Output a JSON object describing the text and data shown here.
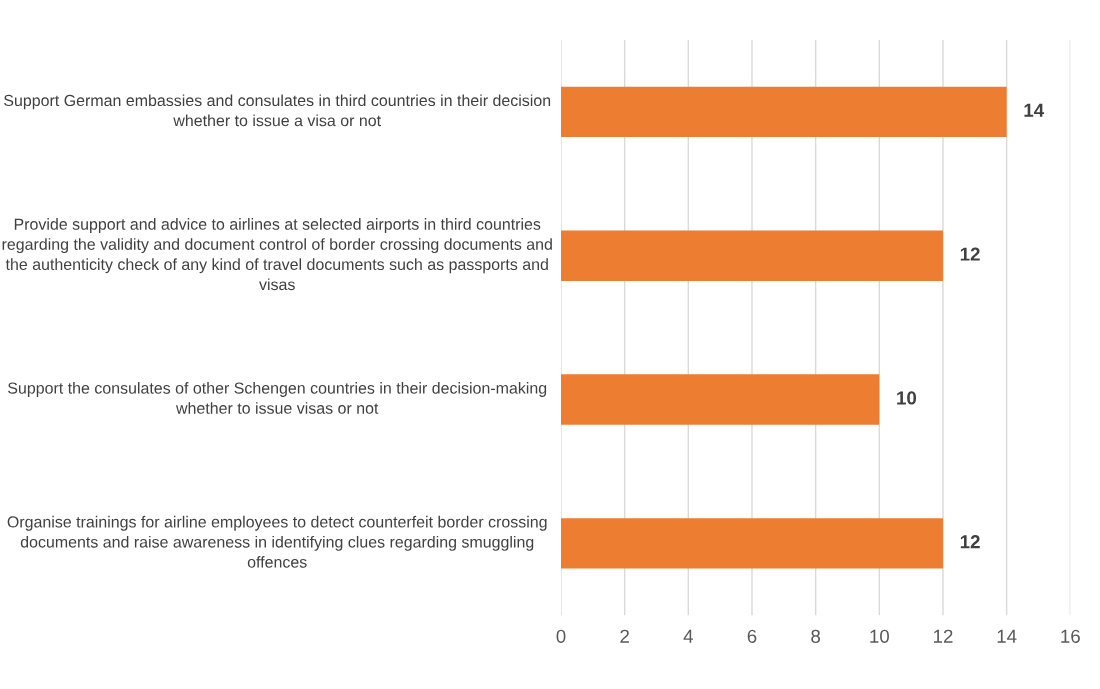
{
  "chart_data": {
    "type": "bar",
    "orientation": "horizontal",
    "categories": [
      "Support German embassies and consulates in third countries in their decision whether to issue a visa or not",
      "Provide support and advice to airlines at selected airports in third countries regarding the validity and document control of border crossing documents and the authenticity check of any kind of travel documents such as passports and visas",
      "Support the consulates of other Schengen countries in their decision-making whether to issue visas or not",
      "Organise trainings for airline employees to detect counterfeit border crossing documents and raise awareness in identifying clues regarding smuggling offences"
    ],
    "values": [
      14,
      12,
      10,
      12
    ],
    "color": "#ed7d31",
    "xlim": [
      0,
      16
    ],
    "xticks": [
      0,
      2,
      4,
      6,
      8,
      10,
      12,
      14,
      16
    ],
    "grid": "x",
    "data_labels": true
  }
}
